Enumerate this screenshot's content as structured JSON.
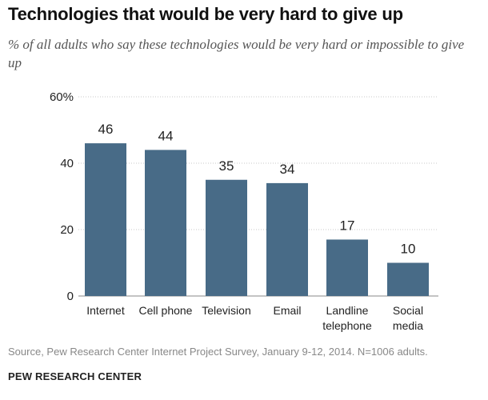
{
  "header": {
    "title": "Technologies that would be very hard to give up",
    "subtitle": "% of all adults who say these technologies would be very hard or impossible to give up"
  },
  "footer": {
    "source": "Source, Pew Research Center Internet Project Survey, January 9-12, 2014. N=1006 adults.",
    "org": "PEW RESEARCH CENTER"
  },
  "chart_data": {
    "type": "bar",
    "categories": [
      [
        "Internet"
      ],
      [
        "Cell phone"
      ],
      [
        "Television"
      ],
      [
        "Email"
      ],
      [
        "Landline",
        "telephone"
      ],
      [
        "Social",
        "media"
      ]
    ],
    "values": [
      46,
      44,
      35,
      34,
      17,
      10
    ],
    "ylim": [
      0,
      60
    ],
    "yticks": [
      0,
      20,
      40,
      60
    ],
    "ytick_labels": [
      "0",
      "20",
      "40",
      "60%"
    ],
    "grid": true,
    "bar_color": "#486b87",
    "grid_color": "#c8c8c8"
  }
}
